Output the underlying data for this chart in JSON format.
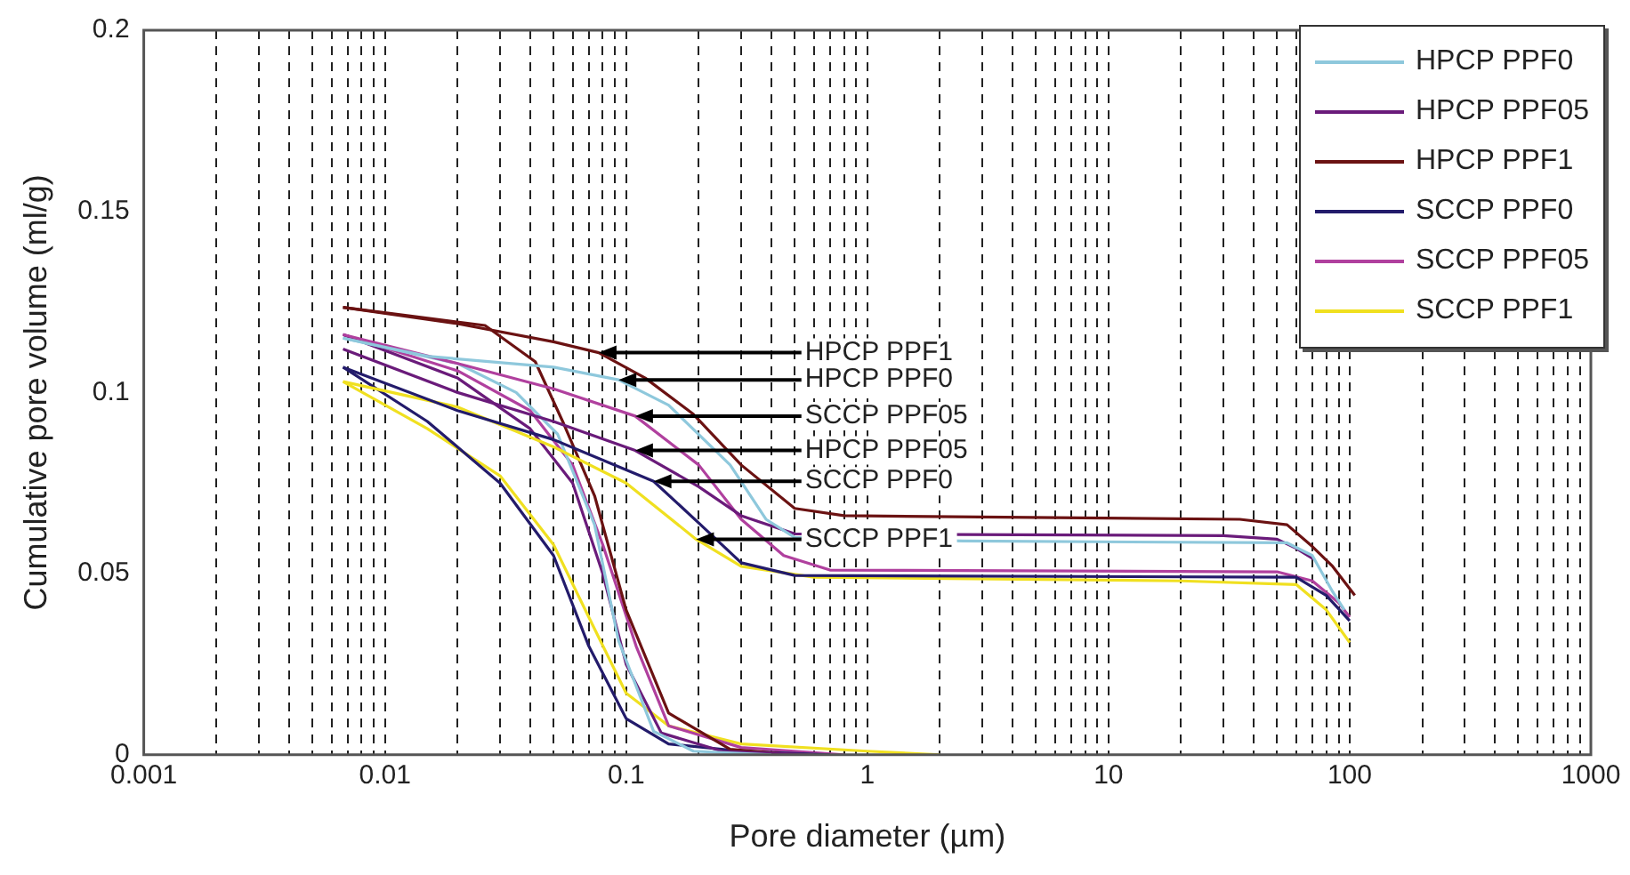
{
  "chart_data": {
    "type": "line",
    "xlabel": "Pore diameter (µm)",
    "ylabel": "Cumulative pore volume (ml/g)",
    "log": "x",
    "grid": "x",
    "legend": "top right",
    "marker": "none",
    "line_style": "solid",
    "xlim": [
      0.001,
      1000
    ],
    "ylim": [
      0,
      0.2
    ],
    "yticks": [
      0,
      0.05,
      0.1,
      0.15,
      0.2
    ],
    "xticks": [
      0.001,
      {
        "value": 0.002,
        "label": null
      },
      {
        "value": 0.003,
        "label": null
      },
      {
        "value": 0.004,
        "label": null
      },
      {
        "value": 0.005,
        "label": null
      },
      {
        "value": 0.006,
        "label": null
      },
      {
        "value": 0.007,
        "label": null
      },
      {
        "value": 0.008,
        "label": null
      },
      {
        "value": 0.009,
        "label": null
      },
      0.01,
      {
        "value": 0.02,
        "label": null
      },
      {
        "value": 0.03,
        "label": null
      },
      {
        "value": 0.04,
        "label": null
      },
      {
        "value": 0.05,
        "label": null
      },
      {
        "value": 0.06,
        "label": null
      },
      {
        "value": 0.07,
        "label": null
      },
      {
        "value": 0.08,
        "label": null
      },
      {
        "value": 0.09,
        "label": null
      },
      0.1,
      {
        "value": 0.2,
        "label": null
      },
      {
        "value": 0.3,
        "label": null
      },
      {
        "value": 0.4,
        "label": null
      },
      {
        "value": 0.5,
        "label": null
      },
      {
        "value": 0.6,
        "label": null
      },
      {
        "value": 0.7,
        "label": null
      },
      {
        "value": 0.8,
        "label": null
      },
      {
        "value": 0.9,
        "label": null
      },
      1,
      {
        "value": 2,
        "label": null
      },
      {
        "value": 3,
        "label": null
      },
      {
        "value": 4,
        "label": null
      },
      {
        "value": 5,
        "label": null
      },
      {
        "value": 6,
        "label": null
      },
      {
        "value": 7,
        "label": null
      },
      {
        "value": 8,
        "label": null
      },
      {
        "value": 9,
        "label": null
      },
      10,
      {
        "value": 20,
        "label": null
      },
      {
        "value": 30,
        "label": null
      },
      {
        "value": 40,
        "label": null
      },
      {
        "value": 50,
        "label": null
      },
      {
        "value": 60,
        "label": null
      },
      {
        "value": 70,
        "label": null
      },
      {
        "value": 80,
        "label": null
      },
      {
        "value": 90,
        "label": null
      },
      100,
      {
        "value": 200,
        "label": null
      },
      {
        "value": 300,
        "label": null
      },
      {
        "value": 400,
        "label": null
      },
      {
        "value": 500,
        "label": null
      },
      {
        "value": 600,
        "label": null
      },
      {
        "value": 700,
        "label": null
      },
      {
        "value": 800,
        "label": null
      },
      {
        "value": 900,
        "label": null
      },
      1000
    ],
    "series": [
      {
        "name": "HPCP PPF0",
        "color": "#8ec8dc",
        "x": [
          0.0067,
          0.015,
          0.05,
          0.093,
          0.15,
          0.27,
          0.38,
          0.5,
          2.5,
          55,
          70,
          85,
          95
        ],
        "values": [
          0.115,
          0.11,
          0.107,
          0.1035,
          0.0965,
          0.08,
          0.065,
          0.06,
          0.059,
          0.0585,
          0.055,
          0.045,
          0.04
        ]
      },
      {
        "name": "HPCP PPF05",
        "color": "#6a1b7a",
        "x": [
          0.0067,
          0.02,
          0.05,
          0.109,
          0.2,
          0.3,
          0.5,
          30,
          50,
          60,
          71
        ],
        "values": [
          0.112,
          0.1,
          0.092,
          0.084,
          0.074,
          0.066,
          0.061,
          0.0605,
          0.0595,
          0.057,
          0.054
        ]
      },
      {
        "name": "HPCP PPF1",
        "color": "#6b1212",
        "x": [
          0.0067,
          0.02,
          0.05,
          0.077,
          0.12,
          0.19,
          0.3,
          0.5,
          0.8,
          35,
          55,
          70,
          85,
          105
        ],
        "values": [
          0.1235,
          0.119,
          0.114,
          0.111,
          0.104,
          0.094,
          0.08,
          0.068,
          0.066,
          0.065,
          0.0635,
          0.0575,
          0.052,
          0.044
        ]
      },
      {
        "name": "SCCP PPF0",
        "color": "#231b6b",
        "x": [
          0.0067,
          0.02,
          0.05,
          0.13,
          0.2,
          0.3,
          0.5,
          60,
          80,
          100
        ],
        "values": [
          0.107,
          0.095,
          0.087,
          0.0755,
          0.064,
          0.053,
          0.0495,
          0.049,
          0.044,
          0.037
        ]
      },
      {
        "name": "SCCP PPF05",
        "color": "#b0409e",
        "x": [
          0.0067,
          0.02,
          0.05,
          0.109,
          0.2,
          0.3,
          0.45,
          0.7,
          50,
          70,
          90,
          100
        ],
        "values": [
          0.116,
          0.108,
          0.101,
          0.0935,
          0.08,
          0.065,
          0.055,
          0.051,
          0.0505,
          0.048,
          0.042,
          0.038
        ]
      },
      {
        "name": "SCCP PPF1",
        "color": "#f0e020",
        "x": [
          0.0067,
          0.02,
          0.05,
          0.1,
          0.195,
          0.3,
          0.6,
          20,
          60,
          80,
          100
        ],
        "values": [
          0.103,
          0.096,
          0.085,
          0.075,
          0.0595,
          0.052,
          0.049,
          0.048,
          0.047,
          0.04,
          0.031
        ]
      },
      {
        "color": "#8ec8dc",
        "x": [
          0.0067,
          0.02,
          0.035,
          0.052,
          0.074,
          0.093,
          0.13,
          0.19,
          0.4
        ],
        "values": [
          0.115,
          0.108,
          0.1,
          0.0885,
          0.0635,
          0.0315,
          0.0065,
          0.001,
          0
        ]
      },
      {
        "color": "#6a1b7a",
        "x": [
          0.0067,
          0.02,
          0.04,
          0.06,
          0.08,
          0.1,
          0.14,
          0.25,
          0.6
        ],
        "values": [
          0.116,
          0.104,
          0.09,
          0.075,
          0.05,
          0.025,
          0.006,
          0.001,
          0
        ]
      },
      {
        "color": "#6b1212",
        "x": [
          0.0067,
          0.026,
          0.042,
          0.055,
          0.074,
          0.1,
          0.15,
          0.27,
          0.5
        ],
        "values": [
          0.1235,
          0.1185,
          0.1085,
          0.0915,
          0.0715,
          0.04,
          0.0115,
          0.0015,
          0
        ]
      },
      {
        "color": "#231b6b",
        "x": [
          0.0067,
          0.015,
          0.03,
          0.05,
          0.07,
          0.1,
          0.15,
          0.3,
          0.7
        ],
        "values": [
          0.107,
          0.092,
          0.075,
          0.055,
          0.03,
          0.01,
          0.003,
          0.001,
          0
        ]
      },
      {
        "color": "#b0409e",
        "x": [
          0.0067,
          0.02,
          0.04,
          0.06,
          0.08,
          0.11,
          0.15,
          0.3,
          0.8
        ],
        "values": [
          0.116,
          0.106,
          0.095,
          0.08,
          0.058,
          0.03,
          0.008,
          0.002,
          0
        ]
      },
      {
        "color": "#f0e020",
        "x": [
          0.0067,
          0.015,
          0.03,
          0.05,
          0.07,
          0.1,
          0.15,
          0.3,
          1,
          2
        ],
        "values": [
          0.103,
          0.09,
          0.077,
          0.058,
          0.038,
          0.017,
          0.008,
          0.003,
          0.001,
          0
        ]
      }
    ],
    "annotations": [
      {
        "text": "HPCP PPF1",
        "x": 0.077,
        "y": 0.111
      },
      {
        "text": "HPCP PPF0",
        "x": 0.093,
        "y": 0.1035
      },
      {
        "text": "SCCP PPF05",
        "x": 0.109,
        "y": 0.0935
      },
      {
        "text": "HPCP PPF05",
        "x": 0.109,
        "y": 0.084
      },
      {
        "text": "SCCP PPF0",
        "x": 0.13,
        "y": 0.0755
      },
      {
        "text": "SCCP PPF1",
        "x": 0.195,
        "y": 0.0595
      }
    ]
  }
}
